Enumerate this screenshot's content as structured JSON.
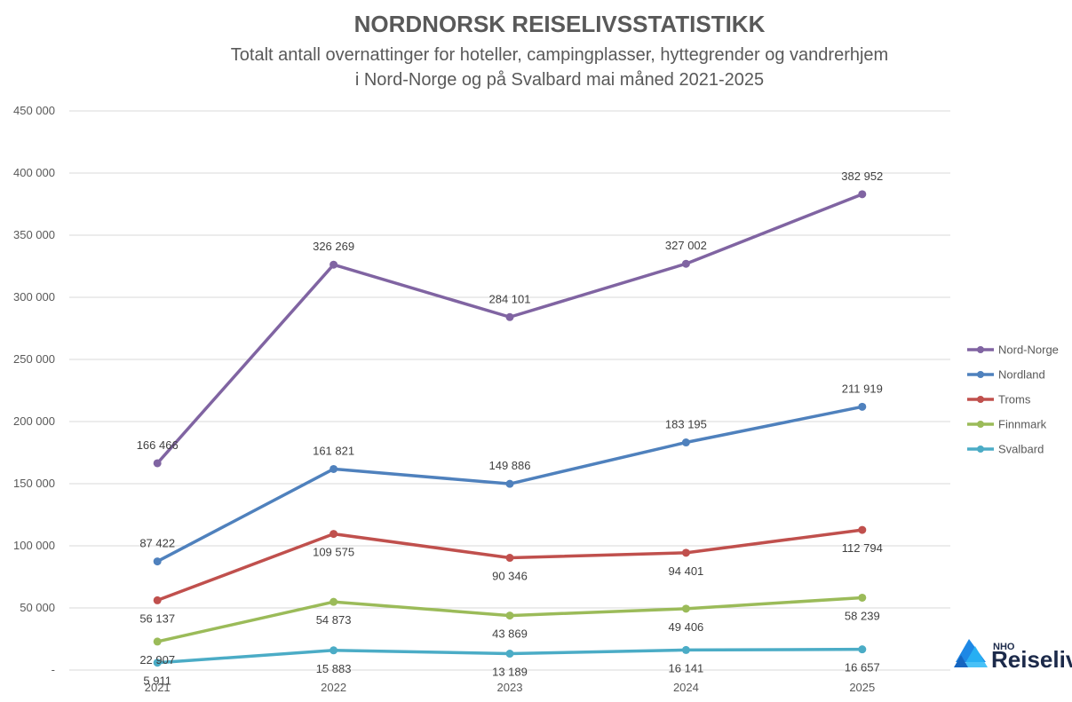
{
  "chart_data": {
    "type": "line",
    "title": "NORDNORSK REISELIVSSTATISTIKK",
    "subtitle_lines": [
      "Totalt antall overnattinger for hoteller, campingplasser, hyttegrender og vandrerhjem",
      "i Nord-Norge og på Svalbard mai måned 2021-2025"
    ],
    "categories": [
      "2021",
      "2022",
      "2023",
      "2024",
      "2025"
    ],
    "ylim": [
      0,
      450000
    ],
    "y_ticks": [
      0,
      50000,
      100000,
      150000,
      200000,
      250000,
      300000,
      350000,
      400000,
      450000
    ],
    "y_tick_labels": [
      "-",
      "50 000",
      "100 000",
      "150 000",
      "200 000",
      "250 000",
      "300 000",
      "350 000",
      "400 000",
      "450 000"
    ],
    "grid": true,
    "legend_position": "right",
    "series": [
      {
        "name": "Nord-Norge",
        "color": "#8064a2",
        "values": [
          166466,
          326269,
          284101,
          327002,
          382952
        ],
        "labels": [
          "166 466",
          "326 269",
          "284 101",
          "327 002",
          "382 952"
        ],
        "label_side": [
          "above",
          "above",
          "above",
          "above",
          "above"
        ]
      },
      {
        "name": "Nordland",
        "color": "#4f81bd",
        "values": [
          87422,
          161821,
          149886,
          183195,
          211919
        ],
        "labels": [
          "87 422",
          "161 821",
          "149 886",
          "183 195",
          "211 919"
        ],
        "label_side": [
          "above",
          "above",
          "above",
          "above",
          "above"
        ]
      },
      {
        "name": "Troms",
        "color": "#c0504d",
        "values": [
          56137,
          109575,
          90346,
          94401,
          112794
        ],
        "labels": [
          "56 137",
          "109 575",
          "90 346",
          "94 401",
          "112 794"
        ],
        "label_side": [
          "below",
          "below",
          "below",
          "below",
          "below"
        ]
      },
      {
        "name": "Finnmark",
        "color": "#9bbb59",
        "values": [
          22907,
          54873,
          43869,
          49406,
          58239
        ],
        "labels": [
          "22 907",
          "54 873",
          "43 869",
          "49 406",
          "58 239"
        ],
        "label_side": [
          "below",
          "below",
          "below",
          "below",
          "below"
        ]
      },
      {
        "name": "Svalbard",
        "color": "#4bacc6",
        "values": [
          5911,
          15883,
          13189,
          16141,
          16657
        ],
        "labels": [
          "5 911",
          "15 883",
          "13 189",
          "16 141",
          "16 657"
        ],
        "label_side": [
          "below",
          "below",
          "below",
          "below",
          "below"
        ]
      }
    ]
  },
  "logo": {
    "small_text": "NHO",
    "big_text": "Reiseliv",
    "icon": "nho-logo-icon",
    "colors": [
      "#1e88e5",
      "#29b6f6"
    ]
  }
}
